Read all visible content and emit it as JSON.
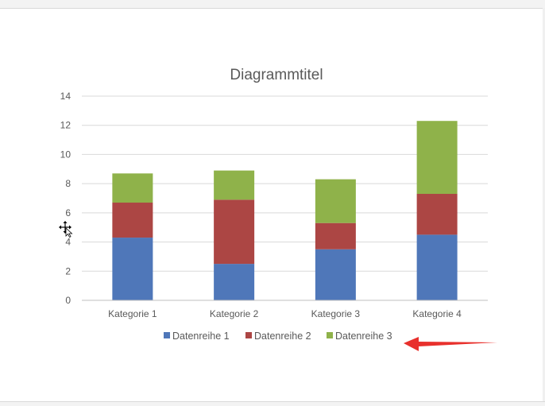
{
  "chart_data": {
    "type": "bar",
    "stacked": true,
    "title": "Diagrammtitel",
    "xlabel": "",
    "ylabel": "",
    "categories": [
      "Kategorie 1",
      "Kategorie 2",
      "Kategorie 3",
      "Kategorie 4"
    ],
    "series": [
      {
        "name": "Datenreihe 1",
        "values": [
          4.3,
          2.5,
          3.5,
          4.5
        ],
        "color": "#4f77b9"
      },
      {
        "name": "Datenreihe 2",
        "values": [
          2.4,
          4.4,
          1.8,
          2.8
        ],
        "color": "#ac4644"
      },
      {
        "name": "Datenreihe 3",
        "values": [
          2.0,
          2.0,
          3.0,
          5.0
        ],
        "color": "#8fb24a"
      }
    ],
    "ylim": [
      0,
      14
    ],
    "yticks": [
      0,
      2,
      4,
      6,
      8,
      10,
      12,
      14
    ],
    "grid": true,
    "legend_position": "bottom"
  },
  "annotations": {
    "arrow_color": "#e8302c",
    "cursor_icon": "move-cursor-icon"
  }
}
